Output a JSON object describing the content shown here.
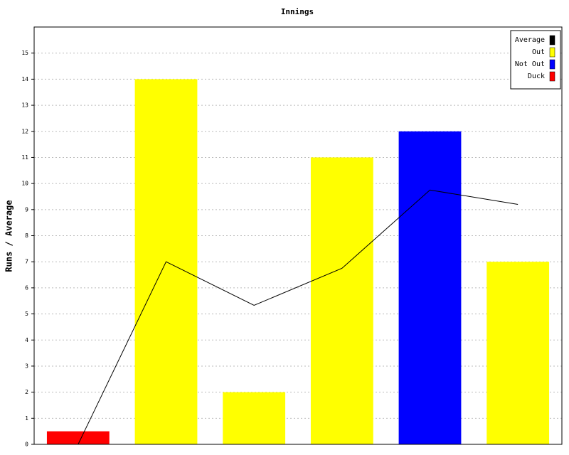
{
  "chart_data": {
    "type": "bar",
    "title": "Innings",
    "y_label": "Runs / Average",
    "categories": [
      null,
      null,
      null,
      null,
      null,
      null
    ],
    "series": [
      {
        "name": "Average",
        "type": "line",
        "color": "#000000",
        "values": [
          0,
          7,
          5.33,
          6.75,
          9.75,
          9.2
        ]
      },
      {
        "name": "Out",
        "color": "#ffff00",
        "values": [
          null,
          14,
          2,
          11,
          null,
          7
        ]
      },
      {
        "name": "Not Out",
        "color": "#0000ff",
        "values": [
          null,
          null,
          null,
          null,
          12,
          null
        ]
      },
      {
        "name": "Duck",
        "color": "#ff0000",
        "values": [
          0.5,
          null,
          null,
          null,
          null,
          null
        ]
      }
    ],
    "ylim": [
      0,
      16
    ],
    "yticks": [
      0,
      1,
      2,
      3,
      4,
      5,
      6,
      7,
      8,
      9,
      10,
      11,
      12,
      13,
      14,
      15
    ],
    "grid": true,
    "legend": "top-right"
  }
}
